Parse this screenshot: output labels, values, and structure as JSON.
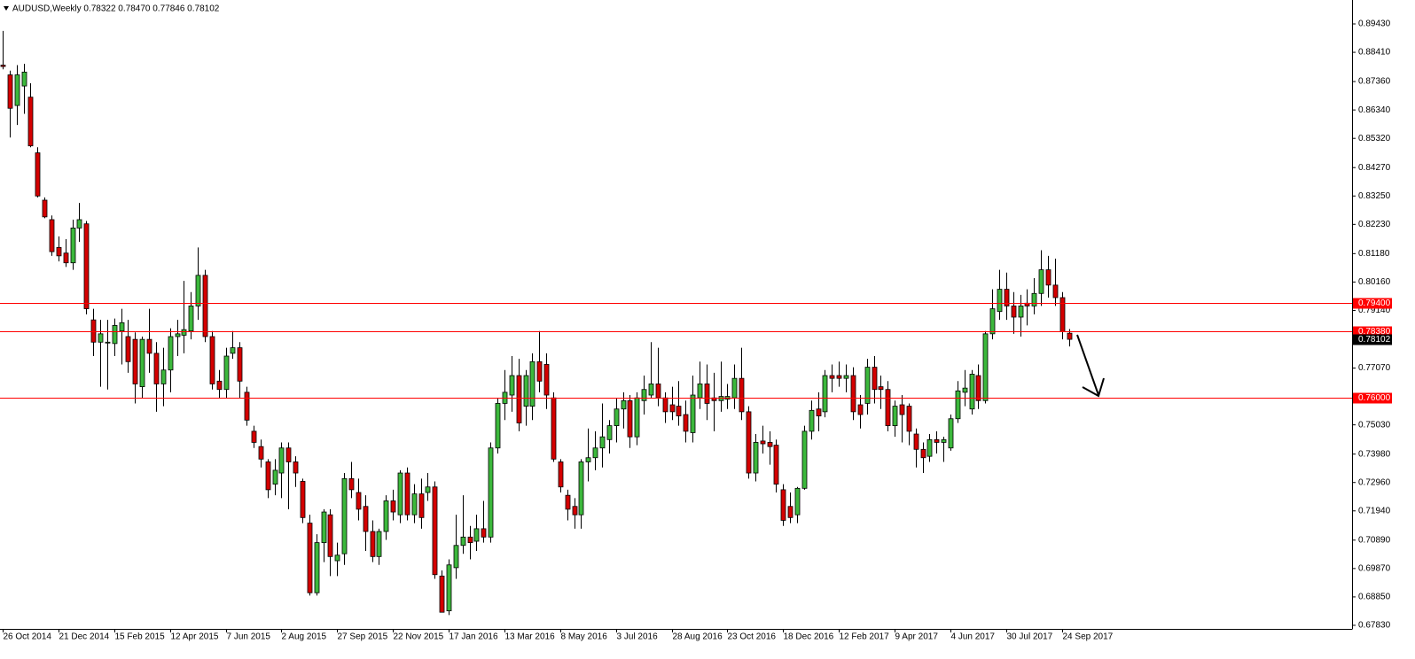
{
  "chart_data": {
    "type": "candlestick",
    "title": "AUDUSD,Weekly  0.78322 0.78470 0.77846 0.78102",
    "categories": [
      "26 Oct 2014",
      null,
      null,
      null,
      null,
      null,
      null,
      null,
      "21 Dec 2014",
      null,
      null,
      null,
      null,
      null,
      null,
      null,
      "15 Feb 2015",
      null,
      null,
      null,
      null,
      null,
      null,
      null,
      "12 Apr 2015",
      null,
      null,
      null,
      null,
      null,
      null,
      null,
      "7 Jun 2015",
      null,
      null,
      null,
      null,
      null,
      null,
      null,
      "2 Aug 2015",
      null,
      null,
      null,
      null,
      null,
      null,
      null,
      "27 Sep 2015",
      null,
      null,
      null,
      null,
      null,
      null,
      null,
      "22 Nov 2015",
      null,
      null,
      null,
      null,
      null,
      null,
      null,
      "17 Jan 2016",
      null,
      null,
      null,
      null,
      null,
      null,
      null,
      "13 Mar 2016",
      null,
      null,
      null,
      null,
      null,
      null,
      null,
      "8 May 2016",
      null,
      null,
      null,
      null,
      null,
      null,
      null,
      "3 Jul 2016",
      null,
      null,
      null,
      null,
      null,
      null,
      null,
      "28 Aug 2016",
      null,
      null,
      null,
      null,
      null,
      null,
      null,
      "23 Oct 2016",
      null,
      null,
      null,
      null,
      null,
      null,
      null,
      "18 Dec 2016",
      null,
      null,
      null,
      null,
      null,
      null,
      null,
      "12 Feb 2017",
      null,
      null,
      null,
      null,
      null,
      null,
      null,
      "9 Apr 2017",
      null,
      null,
      null,
      null,
      null,
      null,
      null,
      "4 Jun 2017",
      null,
      null,
      null,
      null,
      null,
      null,
      null,
      "30 Jul 2017",
      null,
      null,
      null,
      null,
      null,
      null,
      null,
      "24 Sep 2017",
      null
    ],
    "open": [
      0.8795,
      0.876,
      0.865,
      0.872,
      0.868,
      0.848,
      0.831,
      0.824,
      0.814,
      0.812,
      0.8085,
      0.821,
      0.8225,
      0.788,
      0.78,
      0.78,
      0.7795,
      0.784,
      0.782,
      0.781,
      0.764,
      0.781,
      0.776,
      0.765,
      0.77,
      0.782,
      0.7825,
      0.784,
      0.793,
      0.804,
      0.782,
      0.766,
      0.763,
      0.776,
      0.778,
      0.762,
      0.748,
      0.7425,
      0.737,
      0.729,
      0.733,
      0.742,
      0.737,
      0.73,
      0.715,
      0.69,
      0.708,
      0.718,
      0.7015,
      0.704,
      0.731,
      0.726,
      0.721,
      0.712,
      0.703,
      0.712,
      0.723,
      0.718,
      0.733,
      0.718,
      0.7255,
      0.726,
      0.728,
      0.696,
      0.6835,
      0.699,
      0.707,
      0.71,
      0.7085,
      0.713,
      0.71,
      0.742,
      0.758,
      0.761,
      0.768,
      0.757,
      0.757,
      0.773,
      0.772,
      0.76,
      0.737,
      0.725,
      0.721,
      0.718,
      0.737,
      0.7385,
      0.742,
      0.745,
      0.75,
      0.756,
      0.759,
      0.746,
      0.759,
      0.761,
      0.765,
      0.76,
      0.7575,
      0.757,
      0.754,
      0.7475,
      0.76,
      0.765,
      0.76,
      0.759,
      0.7595,
      0.76,
      0.767,
      0.755,
      0.733,
      0.7445,
      0.744,
      0.743,
      0.727,
      0.721,
      0.718,
      0.7275,
      0.748,
      0.756,
      0.755,
      0.768,
      0.768,
      0.767,
      0.768,
      0.7575,
      0.758,
      0.771,
      0.764,
      0.763,
      0.75,
      0.7575,
      0.757,
      0.747,
      0.7415,
      0.739,
      0.745,
      0.744,
      0.742,
      0.7525,
      0.762,
      0.756,
      0.768,
      0.759,
      0.783,
      0.791,
      0.799,
      0.793,
      0.789,
      0.794,
      0.793,
      0.7975,
      0.806,
      0.8005,
      0.796,
      0.78322
    ],
    "high": [
      0.8918,
      0.8775,
      0.8795,
      0.88,
      0.873,
      0.85,
      0.832,
      0.8255,
      0.818,
      0.817,
      0.824,
      0.83,
      0.8235,
      0.792,
      0.788,
      0.788,
      0.7885,
      0.792,
      0.788,
      0.7835,
      0.782,
      0.792,
      0.78,
      0.778,
      0.785,
      0.788,
      0.802,
      0.798,
      0.814,
      0.806,
      0.784,
      0.77,
      0.778,
      0.784,
      0.78,
      0.764,
      0.75,
      0.745,
      0.738,
      0.738,
      0.744,
      0.744,
      0.739,
      0.731,
      0.718,
      0.711,
      0.72,
      0.72,
      0.708,
      0.733,
      0.737,
      0.731,
      0.725,
      0.716,
      0.713,
      0.725,
      0.727,
      0.734,
      0.735,
      0.729,
      0.731,
      0.733,
      0.73,
      0.698,
      0.702,
      0.718,
      0.725,
      0.714,
      0.718,
      0.723,
      0.744,
      0.76,
      0.77,
      0.775,
      0.774,
      0.77,
      0.776,
      0.784,
      0.776,
      0.762,
      0.738,
      0.727,
      0.724,
      0.738,
      0.749,
      0.748,
      0.758,
      0.752,
      0.76,
      0.762,
      0.761,
      0.762,
      0.768,
      0.78,
      0.778,
      0.762,
      0.764,
      0.766,
      0.759,
      0.768,
      0.773,
      0.772,
      0.769,
      0.773,
      0.765,
      0.772,
      0.778,
      0.757,
      0.747,
      0.75,
      0.748,
      0.745,
      0.729,
      0.726,
      0.728,
      0.75,
      0.759,
      0.762,
      0.77,
      0.772,
      0.773,
      0.772,
      0.771,
      0.761,
      0.774,
      0.775,
      0.768,
      0.766,
      0.759,
      0.761,
      0.758,
      0.749,
      0.744,
      0.747,
      0.748,
      0.746,
      0.754,
      0.766,
      0.77,
      0.77,
      0.772,
      0.784,
      0.799,
      0.806,
      0.805,
      0.798,
      0.797,
      0.799,
      0.803,
      0.813,
      0.811,
      0.81,
      0.798,
      0.7847
    ],
    "low": [
      0.878,
      0.8535,
      0.858,
      0.862,
      0.85,
      0.832,
      0.8245,
      0.811,
      0.809,
      0.807,
      0.806,
      0.816,
      0.79,
      0.775,
      0.764,
      0.763,
      0.775,
      0.772,
      0.769,
      0.758,
      0.76,
      0.769,
      0.755,
      0.757,
      0.762,
      0.775,
      0.776,
      0.781,
      0.788,
      0.78,
      0.763,
      0.76,
      0.76,
      0.774,
      0.76,
      0.75,
      0.742,
      0.735,
      0.724,
      0.725,
      0.724,
      0.72,
      0.728,
      0.715,
      0.689,
      0.689,
      0.701,
      0.696,
      0.696,
      0.7,
      0.724,
      0.716,
      0.705,
      0.701,
      0.7,
      0.709,
      0.716,
      0.715,
      0.716,
      0.715,
      0.713,
      0.723,
      0.695,
      0.683,
      0.682,
      0.695,
      0.704,
      0.702,
      0.705,
      0.708,
      0.708,
      0.74,
      0.752,
      0.755,
      0.748,
      0.75,
      0.752,
      0.762,
      0.756,
      0.737,
      0.726,
      0.716,
      0.713,
      0.713,
      0.73,
      0.734,
      0.735,
      0.74,
      0.744,
      0.749,
      0.742,
      0.743,
      0.754,
      0.76,
      0.757,
      0.751,
      0.752,
      0.75,
      0.744,
      0.744,
      0.756,
      0.752,
      0.748,
      0.755,
      0.756,
      0.756,
      0.752,
      0.731,
      0.73,
      0.74,
      0.736,
      0.726,
      0.714,
      0.715,
      0.715,
      0.727,
      0.745,
      0.748,
      0.753,
      0.762,
      0.764,
      0.762,
      0.752,
      0.749,
      0.754,
      0.758,
      0.756,
      0.748,
      0.746,
      0.744,
      0.743,
      0.735,
      0.733,
      0.737,
      0.74,
      0.737,
      0.741,
      0.751,
      0.757,
      0.754,
      0.756,
      0.758,
      0.781,
      0.788,
      0.788,
      0.783,
      0.782,
      0.786,
      0.79,
      0.793,
      0.796,
      0.793,
      0.781,
      0.77846
    ],
    "close": [
      0.879,
      0.864,
      0.876,
      0.877,
      0.8505,
      0.8325,
      0.825,
      0.8125,
      0.811,
      0.8085,
      0.821,
      0.824,
      0.792,
      0.78,
      0.783,
      0.78,
      0.786,
      0.787,
      0.773,
      0.765,
      0.781,
      0.776,
      0.765,
      0.77,
      0.782,
      0.783,
      0.7845,
      0.793,
      0.804,
      0.782,
      0.765,
      0.763,
      0.775,
      0.778,
      0.766,
      0.752,
      0.744,
      0.738,
      0.727,
      0.734,
      0.742,
      0.737,
      0.733,
      0.717,
      0.69,
      0.708,
      0.719,
      0.703,
      0.7035,
      0.731,
      0.727,
      0.72,
      0.712,
      0.703,
      0.712,
      0.723,
      0.719,
      0.733,
      0.718,
      0.7255,
      0.717,
      0.728,
      0.6965,
      0.683,
      0.7,
      0.707,
      0.71,
      0.708,
      0.713,
      0.71,
      0.742,
      0.758,
      0.762,
      0.768,
      0.751,
      0.768,
      0.773,
      0.766,
      0.761,
      0.738,
      0.728,
      0.72,
      0.718,
      0.737,
      0.7385,
      0.742,
      0.746,
      0.75,
      0.756,
      0.759,
      0.746,
      0.76,
      0.763,
      0.765,
      0.76,
      0.755,
      0.755,
      0.7535,
      0.748,
      0.761,
      0.765,
      0.758,
      0.759,
      0.7605,
      0.7605,
      0.767,
      0.755,
      0.733,
      0.744,
      0.7435,
      0.7425,
      0.729,
      0.716,
      0.717,
      0.7275,
      0.748,
      0.7555,
      0.7535,
      0.768,
      0.767,
      0.767,
      0.768,
      0.755,
      0.754,
      0.771,
      0.763,
      0.763,
      0.75,
      0.757,
      0.754,
      0.748,
      0.7415,
      0.7385,
      0.745,
      0.744,
      0.745,
      0.7525,
      0.7625,
      0.7635,
      0.7685,
      0.759,
      0.783,
      0.792,
      0.799,
      0.793,
      0.789,
      0.793,
      0.793,
      0.7975,
      0.806,
      0.8005,
      0.796,
      0.7838,
      0.78102
    ],
    "up_color": "#3cb83c",
    "down_color": "#d40000",
    "ylim": [
      0.67702,
      0.90289
    ],
    "yticks": [
      {
        "value": 0.8943,
        "label": "0.89430"
      },
      {
        "value": 0.8841,
        "label": "0.88410"
      },
      {
        "value": 0.8736,
        "label": "0.87360"
      },
      {
        "value": 0.8634,
        "label": "0.86340"
      },
      {
        "value": 0.8532,
        "label": "0.85320"
      },
      {
        "value": 0.8427,
        "label": "0.84270"
      },
      {
        "value": 0.8325,
        "label": "0.83250"
      },
      {
        "value": 0.8223,
        "label": "0.82230"
      },
      {
        "value": 0.8118,
        "label": "0.81180"
      },
      {
        "value": 0.8016,
        "label": "0.80160"
      },
      {
        "value": 0.7914,
        "label": "0.79140"
      },
      {
        "value": 0.7707,
        "label": "0.77070"
      },
      {
        "value": 0.7503,
        "label": "0.75030"
      },
      {
        "value": 0.7398,
        "label": "0.73980"
      },
      {
        "value": 0.7296,
        "label": "0.72960"
      },
      {
        "value": 0.7194,
        "label": "0.71940"
      },
      {
        "value": 0.7089,
        "label": "0.70890"
      },
      {
        "value": 0.6987,
        "label": "0.69870"
      },
      {
        "value": 0.6885,
        "label": "0.68850"
      },
      {
        "value": 0.6783,
        "label": "0.67830"
      }
    ],
    "levels": [
      {
        "value": 0.794,
        "label": "0.79400"
      },
      {
        "value": 0.7838,
        "label": "0.78380"
      },
      {
        "value": 0.76,
        "label": "0.76000"
      }
    ],
    "level_color": "#ff0000",
    "last_label": "0.78102"
  }
}
